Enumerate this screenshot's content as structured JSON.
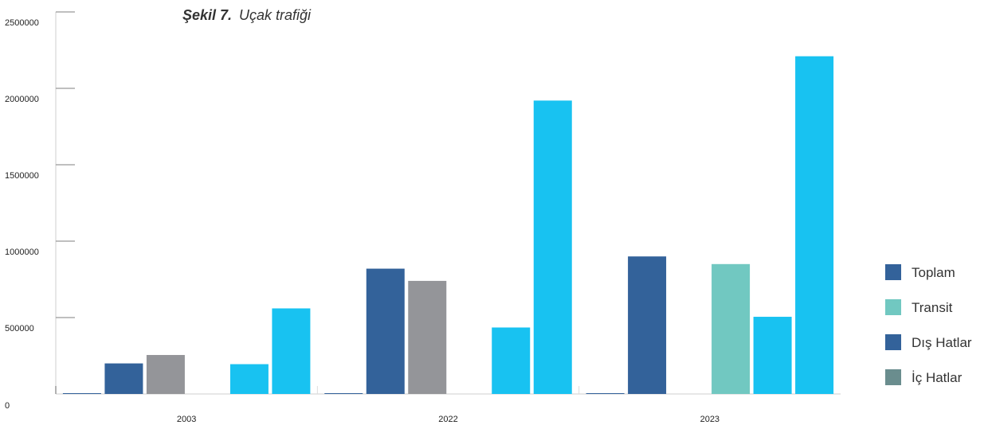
{
  "chart_data": {
    "type": "bar",
    "title_bold": "Şekil 7.",
    "title_rest": " Uçak trafiği",
    "categories": [
      "2003",
      "2022",
      "2023"
    ],
    "ylim": [
      0,
      2500000
    ],
    "yticks": [
      0,
      500000,
      1000000,
      1500000,
      2000000,
      2500000
    ],
    "y_tick_labels": [
      "0",
      "500000",
      "1000000",
      "1500000",
      "2000000",
      "2500000"
    ],
    "series": [
      {
        "color": "#33629a",
        "values": [
          0,
          0,
          0
        ]
      },
      {
        "color": "#33629a",
        "values": [
          200000,
          820000,
          900000
        ]
      },
      {
        "color": "#949599",
        "values": [
          255000,
          740000,
          null
        ]
      },
      {
        "color": "#71c8c1",
        "values": [
          null,
          null,
          850000
        ]
      },
      {
        "color": "#18c2f1",
        "values": [
          195000,
          435000,
          505000
        ]
      },
      {
        "color": "#18c2f1",
        "values": [
          560000,
          1920000,
          2210000
        ]
      }
    ],
    "legend": [
      {
        "label": "Toplam",
        "color": "#33629a"
      },
      {
        "label": "Transit",
        "color": "#71c8c1"
      },
      {
        "label": "Dış Hatlar",
        "color": "#33629a"
      },
      {
        "label": "İç Hatlar",
        "color": "#6a8d8e"
      }
    ],
    "legend_position": "right",
    "grid": false,
    "xlabel": "",
    "ylabel": ""
  }
}
